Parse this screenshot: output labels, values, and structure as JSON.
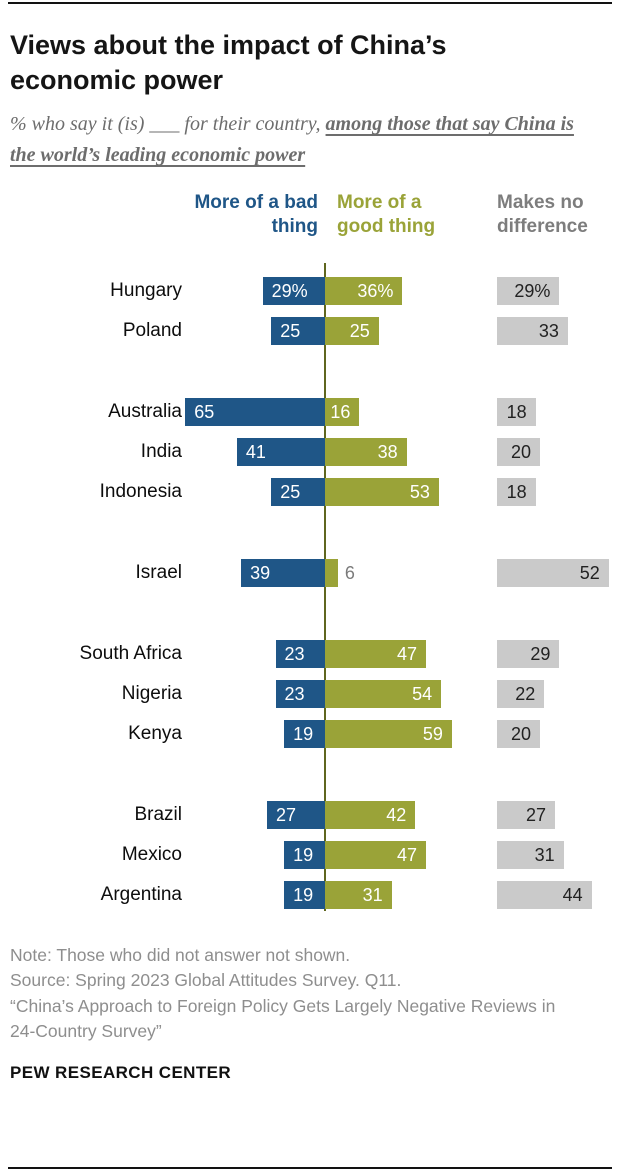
{
  "header": {
    "title": "Views about the impact of China’s economic power",
    "subtitle_prefix": "% who say it (is) ___ for their country, ",
    "subtitle_emphasis": "among those that say China is the world’s leading economic power"
  },
  "chart_data": {
    "type": "bar",
    "orientation": "horizontal-diverging",
    "title": "Views about the impact of China’s economic power",
    "column_headers": [
      "More of a bad thing",
      "More of a good thing",
      "Makes no difference"
    ],
    "categories": [
      "Hungary",
      "Poland",
      "Australia",
      "India",
      "Indonesia",
      "Israel",
      "South Africa",
      "Nigeria",
      "Kenya",
      "Brazil",
      "Mexico",
      "Argentina"
    ],
    "groups": [
      [
        0,
        1
      ],
      [
        2,
        3,
        4
      ],
      [
        5
      ],
      [
        6,
        7,
        8
      ],
      [
        9,
        10,
        11
      ]
    ],
    "series": [
      {
        "name": "More of a bad thing",
        "values": [
          29,
          25,
          65,
          41,
          25,
          39,
          23,
          23,
          19,
          27,
          19,
          19
        ],
        "labels": [
          "29%",
          "25",
          "65",
          "41",
          "25",
          "39",
          "23",
          "23",
          "19",
          "27",
          "19",
          "19"
        ]
      },
      {
        "name": "More of a good thing",
        "values": [
          36,
          25,
          16,
          38,
          53,
          6,
          47,
          54,
          59,
          42,
          47,
          31
        ],
        "labels": [
          "36%",
          "25",
          "16",
          "38",
          "53",
          "6",
          "47",
          "54",
          "59",
          "42",
          "47",
          "31"
        ]
      },
      {
        "name": "Makes no difference",
        "values": [
          29,
          33,
          18,
          20,
          18,
          52,
          29,
          22,
          20,
          27,
          31,
          44
        ],
        "labels": [
          "29%",
          "33",
          "18",
          "20",
          "18",
          "52",
          "29",
          "22",
          "20",
          "27",
          "31",
          "44"
        ]
      }
    ],
    "colors": {
      "bad": "#1f5687",
      "good": "#9aa338",
      "nodiff": "#cacaca",
      "axis": "#5f661f",
      "header_gray": "#7d7d7d",
      "outside_label": "#7b7b7b"
    },
    "xlim_left": [
      70,
      0
    ],
    "xlim_right": [
      0,
      70
    ],
    "grid": false,
    "legend_position": "top-as-column-headers"
  },
  "footer": {
    "note": "Note: Those who did not answer not shown.",
    "source": "Source: Spring 2023 Global Attitudes Survey. Q11.",
    "quote": "“China’s Approach to Foreign Policy Gets Largely Negative Reviews in 24-Country Survey”",
    "brand": "PEW RESEARCH CENTER"
  }
}
